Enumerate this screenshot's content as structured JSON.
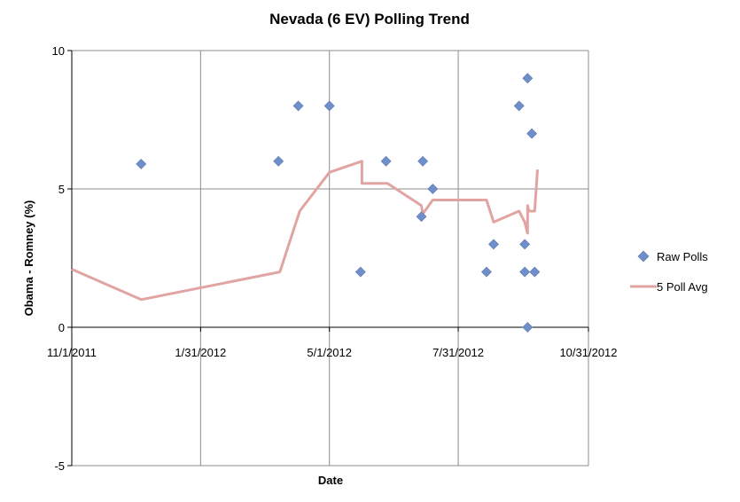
{
  "chart_data": {
    "type": "scatter",
    "title": "Nevada (6 EV) Polling Trend",
    "xlabel": "Date",
    "ylabel": "Obama - Romney (%)",
    "xlim": [
      "2011-11-01",
      "2012-10-31"
    ],
    "ylim": [
      -5,
      10
    ],
    "x_ticks": [
      "11/1/2011",
      "1/31/2012",
      "5/1/2012",
      "7/31/2012",
      "10/31/2012"
    ],
    "y_ticks": [
      -5,
      0,
      5,
      10
    ],
    "grid": true,
    "legend_position": "right",
    "series": [
      {
        "name": "Raw Polls",
        "kind": "scatter",
        "color": "#6f8fca",
        "marker": "diamond",
        "points": [
          {
            "x": "2011-12-20",
            "y": 5.9
          },
          {
            "x": "2012-03-26",
            "y": 6
          },
          {
            "x": "2012-04-09",
            "y": 8
          },
          {
            "x": "2012-05-01",
            "y": 8
          },
          {
            "x": "2012-05-23",
            "y": 2
          },
          {
            "x": "2012-06-10",
            "y": 6
          },
          {
            "x": "2012-07-05",
            "y": 4
          },
          {
            "x": "2012-07-06",
            "y": 6
          },
          {
            "x": "2012-07-13",
            "y": 5
          },
          {
            "x": "2012-08-20",
            "y": 2
          },
          {
            "x": "2012-08-25",
            "y": 3
          },
          {
            "x": "2012-09-12",
            "y": 8
          },
          {
            "x": "2012-09-16",
            "y": 3
          },
          {
            "x": "2012-09-16",
            "y": 2
          },
          {
            "x": "2012-09-18",
            "y": 9
          },
          {
            "x": "2012-09-18",
            "y": 0
          },
          {
            "x": "2012-09-21",
            "y": 7
          },
          {
            "x": "2012-09-23",
            "y": 2
          }
        ]
      },
      {
        "name": "5 Poll Avg",
        "kind": "line",
        "color": "#e0a4a2",
        "points": [
          {
            "x": "2011-11-01",
            "y": 2.1
          },
          {
            "x": "2011-12-20",
            "y": 1.0
          },
          {
            "x": "2012-03-27",
            "y": 2.0
          },
          {
            "x": "2012-04-10",
            "y": 4.2
          },
          {
            "x": "2012-05-01",
            "y": 5.6
          },
          {
            "x": "2012-05-24",
            "y": 6.0
          },
          {
            "x": "2012-05-24",
            "y": 5.2
          },
          {
            "x": "2012-06-11",
            "y": 5.2
          },
          {
            "x": "2012-07-05",
            "y": 4.4
          },
          {
            "x": "2012-07-06",
            "y": 4.1
          },
          {
            "x": "2012-07-13",
            "y": 4.6
          },
          {
            "x": "2012-08-20",
            "y": 4.6
          },
          {
            "x": "2012-08-25",
            "y": 3.8
          },
          {
            "x": "2012-09-12",
            "y": 4.2
          },
          {
            "x": "2012-09-16",
            "y": 3.8
          },
          {
            "x": "2012-09-18",
            "y": 3.4
          },
          {
            "x": "2012-09-18",
            "y": 4.4
          },
          {
            "x": "2012-09-19",
            "y": 4.2
          },
          {
            "x": "2012-09-23",
            "y": 4.2
          },
          {
            "x": "2012-09-25",
            "y": 5.7
          }
        ]
      }
    ]
  }
}
